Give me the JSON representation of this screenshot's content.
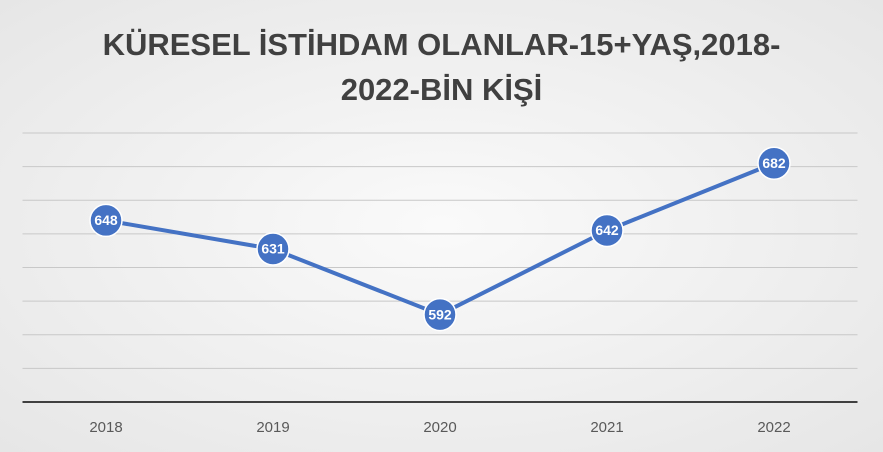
{
  "chart_data": {
    "type": "line",
    "title": "KÜRESEL İSTİHDAM OLANLAR-15+YAŞ,2018-2022-BİN KİŞİ",
    "categories": [
      "2018",
      "2019",
      "2020",
      "2021",
      "2022"
    ],
    "values": [
      648,
      631,
      592,
      642,
      682
    ],
    "color": "#4472c4",
    "ylim": [
      540,
      700
    ],
    "yticks": [
      540,
      560,
      580,
      600,
      620,
      640,
      660,
      680,
      700
    ],
    "grid": true
  }
}
